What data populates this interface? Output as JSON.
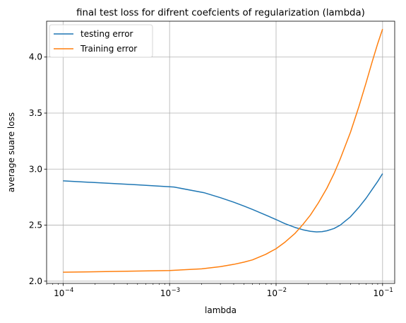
{
  "chart_data": {
    "type": "line",
    "title": "final test loss for difrent coefcients of regularization (lambda)",
    "xlabel": "lambda",
    "ylabel": "average suare loss",
    "xscale": "log",
    "xlim": [
      7e-05,
      0.13
    ],
    "ylim": [
      1.98,
      4.32
    ],
    "grid": true,
    "legend_position": "top-left",
    "x_ticks": [
      {
        "value": 0.0001,
        "base": "10",
        "exp": "−4"
      },
      {
        "value": 0.001,
        "base": "10",
        "exp": "−3"
      },
      {
        "value": 0.01,
        "base": "10",
        "exp": "−2"
      },
      {
        "value": 0.1,
        "base": "10",
        "exp": "−1"
      }
    ],
    "y_ticks": [
      {
        "value": 2.0,
        "label": "2.0"
      },
      {
        "value": 2.5,
        "label": "2.5"
      },
      {
        "value": 3.0,
        "label": "3.0"
      },
      {
        "value": 3.5,
        "label": "3.5"
      },
      {
        "value": 4.0,
        "label": "4.0"
      }
    ],
    "series": [
      {
        "name": "testing error",
        "color": "#1f77b4",
        "x": [
          0.0001,
          0.0005,
          0.0011,
          0.0021,
          0.003,
          0.004,
          0.005,
          0.006,
          0.008,
          0.01,
          0.012,
          0.015,
          0.018,
          0.021,
          0.024,
          0.027,
          0.03,
          0.035,
          0.04,
          0.05,
          0.06,
          0.07,
          0.08,
          0.09,
          0.1
        ],
        "values": [
          2.895,
          2.86,
          2.84,
          2.79,
          2.745,
          2.705,
          2.67,
          2.64,
          2.59,
          2.55,
          2.515,
          2.48,
          2.458,
          2.445,
          2.44,
          2.442,
          2.45,
          2.47,
          2.5,
          2.575,
          2.66,
          2.74,
          2.82,
          2.89,
          2.96
        ]
      },
      {
        "name": "Training error",
        "color": "#ff7f0e",
        "x": [
          0.0001,
          0.0005,
          0.001,
          0.002,
          0.003,
          0.004,
          0.005,
          0.006,
          0.008,
          0.01,
          0.012,
          0.015,
          0.018,
          0.021,
          0.025,
          0.03,
          0.035,
          0.04,
          0.05,
          0.06,
          0.07,
          0.08,
          0.09,
          0.1
        ],
        "values": [
          2.08,
          2.09,
          2.095,
          2.11,
          2.13,
          2.15,
          2.17,
          2.19,
          2.24,
          2.29,
          2.345,
          2.425,
          2.51,
          2.59,
          2.7,
          2.83,
          2.96,
          3.09,
          3.33,
          3.56,
          3.77,
          3.96,
          4.12,
          4.25
        ]
      }
    ]
  }
}
